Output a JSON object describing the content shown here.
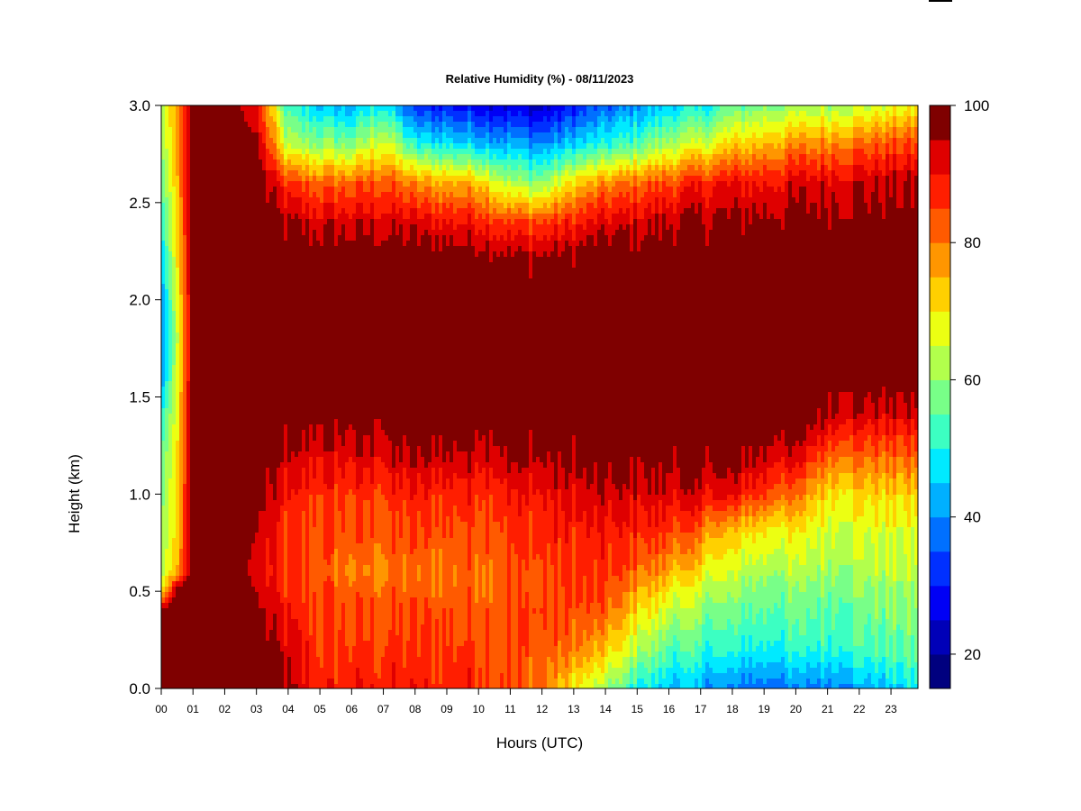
{
  "chart_data": {
    "type": "heatmap",
    "title": "Relative Humidity (%) - 08/11/2023",
    "xlabel": "Hours (UTC)",
    "ylabel": "Height (km)",
    "xlim": [
      0,
      23.85
    ],
    "ylim": [
      0,
      3.0
    ],
    "x_ticks": [
      0,
      1,
      2,
      3,
      4,
      5,
      6,
      7,
      8,
      9,
      10,
      11,
      12,
      13,
      14,
      15,
      16,
      17,
      18,
      19,
      20,
      21,
      22,
      23
    ],
    "x_tick_labels": [
      "00",
      "01",
      "02",
      "03",
      "04",
      "05",
      "06",
      "07",
      "08",
      "09",
      "10",
      "11",
      "12",
      "13",
      "14",
      "15",
      "16",
      "17",
      "18",
      "19",
      "20",
      "21",
      "22",
      "23"
    ],
    "y_ticks": [
      0.0,
      0.5,
      1.0,
      1.5,
      2.0,
      2.5,
      3.0
    ],
    "y_tick_labels": [
      "0.0",
      "0.5",
      "1.0",
      "1.5",
      "2.0",
      "2.5",
      "3.0"
    ],
    "colorbar": {
      "label_values": [
        20,
        40,
        60,
        80,
        100
      ],
      "label_texts": [
        "20",
        "40",
        "60",
        "80",
        "100"
      ],
      "range": [
        15,
        100
      ],
      "levels": [
        15,
        20,
        25,
        30,
        35,
        40,
        45,
        50,
        55,
        60,
        65,
        70,
        75,
        80,
        85,
        90,
        95,
        100
      ],
      "colors": [
        "#00007f",
        "#0000b8",
        "#0000f5",
        "#0030ff",
        "#0070ff",
        "#00b0ff",
        "#00eaff",
        "#3cffc2",
        "#78ff88",
        "#b2ff4c",
        "#ecff12",
        "#ffd000",
        "#ff9600",
        "#ff5a00",
        "#ff1e00",
        "#df0000",
        "#7f0000"
      ]
    },
    "profile_hours": [
      0,
      0.5,
      1,
      2,
      3,
      4,
      5,
      6,
      7,
      8,
      9,
      10,
      11,
      12,
      13,
      14,
      15,
      16,
      17,
      18,
      19,
      20,
      21,
      22,
      23,
      23.85
    ],
    "profile_heights_km": [
      0,
      0.2,
      0.4,
      0.5,
      0.6,
      0.8,
      1.0,
      1.2,
      1.4,
      1.6,
      1.8,
      2.0,
      2.2,
      2.4,
      2.6,
      2.8,
      3.0
    ],
    "rh_percent": [
      [
        100,
        100,
        100,
        68,
        62,
        60,
        58,
        55,
        50,
        40,
        38,
        40,
        45,
        50,
        55,
        60,
        62
      ],
      [
        100,
        100,
        100,
        100,
        75,
        72,
        72,
        70,
        68,
        66,
        64,
        66,
        70,
        72,
        74,
        76,
        78
      ],
      [
        100,
        100,
        100,
        100,
        100,
        100,
        100,
        100,
        100,
        100,
        100,
        100,
        100,
        100,
        100,
        100,
        100
      ],
      [
        100,
        100,
        100,
        100,
        100,
        100,
        100,
        100,
        100,
        100,
        100,
        100,
        100,
        100,
        100,
        100,
        100
      ],
      [
        100,
        100,
        96,
        95,
        93,
        95,
        97,
        100,
        100,
        100,
        100,
        100,
        100,
        100,
        100,
        97,
        90
      ],
      [
        95,
        92,
        88,
        86,
        84,
        85,
        88,
        93,
        98,
        100,
        100,
        100,
        100,
        95,
        85,
        62,
        50
      ],
      [
        88,
        86,
        85,
        84,
        83,
        84,
        87,
        92,
        98,
        100,
        100,
        100,
        100,
        93,
        82,
        60,
        45
      ],
      [
        88,
        86,
        84,
        82,
        80,
        83,
        86,
        92,
        98,
        100,
        100,
        100,
        100,
        93,
        82,
        58,
        42
      ],
      [
        88,
        86,
        84,
        82,
        80,
        83,
        86,
        93,
        98,
        100,
        100,
        100,
        100,
        93,
        84,
        68,
        50
      ],
      [
        88,
        86,
        84,
        82,
        81,
        84,
        88,
        95,
        100,
        100,
        100,
        100,
        100,
        92,
        78,
        50,
        30
      ],
      [
        88,
        86,
        84,
        82,
        81,
        84,
        88,
        95,
        100,
        100,
        100,
        100,
        100,
        90,
        76,
        48,
        30
      ],
      [
        88,
        86,
        84,
        82,
        82,
        85,
        88,
        95,
        100,
        100,
        100,
        100,
        100,
        90,
        75,
        45,
        28
      ],
      [
        85,
        85,
        84,
        83,
        83,
        86,
        89,
        96,
        100,
        100,
        100,
        100,
        97,
        85,
        62,
        42,
        25
      ],
      [
        80,
        83,
        85,
        84,
        84,
        87,
        90,
        96,
        100,
        100,
        100,
        100,
        97,
        85,
        60,
        40,
        22
      ],
      [
        70,
        80,
        84,
        85,
        86,
        88,
        92,
        97,
        100,
        100,
        100,
        100,
        98,
        88,
        72,
        45,
        30
      ],
      [
        60,
        73,
        82,
        84,
        86,
        88,
        93,
        98,
        100,
        100,
        100,
        100,
        100,
        92,
        78,
        50,
        35
      ],
      [
        50,
        63,
        72,
        76,
        82,
        88,
        93,
        98,
        100,
        100,
        100,
        100,
        100,
        93,
        82,
        55,
        40
      ],
      [
        45,
        55,
        65,
        70,
        76,
        86,
        93,
        98,
        100,
        100,
        100,
        100,
        100,
        95,
        85,
        62,
        45
      ],
      [
        42,
        52,
        60,
        64,
        70,
        80,
        92,
        98,
        100,
        100,
        100,
        100,
        100,
        96,
        88,
        66,
        48
      ],
      [
        38,
        50,
        56,
        60,
        64,
        72,
        90,
        98,
        100,
        100,
        100,
        100,
        100,
        96,
        90,
        72,
        55
      ],
      [
        38,
        50,
        56,
        58,
        62,
        70,
        86,
        95,
        100,
        100,
        100,
        100,
        100,
        97,
        90,
        75,
        58
      ],
      [
        38,
        50,
        56,
        58,
        62,
        68,
        80,
        92,
        100,
        100,
        100,
        100,
        100,
        97,
        92,
        78,
        60
      ],
      [
        40,
        52,
        56,
        58,
        62,
        66,
        72,
        84,
        96,
        100,
        100,
        100,
        100,
        98,
        93,
        80,
        62
      ],
      [
        42,
        53,
        57,
        59,
        62,
        66,
        72,
        82,
        93,
        100,
        100,
        100,
        100,
        98,
        94,
        82,
        64
      ],
      [
        45,
        55,
        58,
        60,
        63,
        66,
        72,
        82,
        92,
        100,
        100,
        100,
        100,
        98,
        95,
        84,
        66
      ],
      [
        48,
        56,
        58,
        60,
        63,
        66,
        72,
        82,
        92,
        100,
        100,
        100,
        100,
        98,
        95,
        85,
        68
      ]
    ]
  }
}
